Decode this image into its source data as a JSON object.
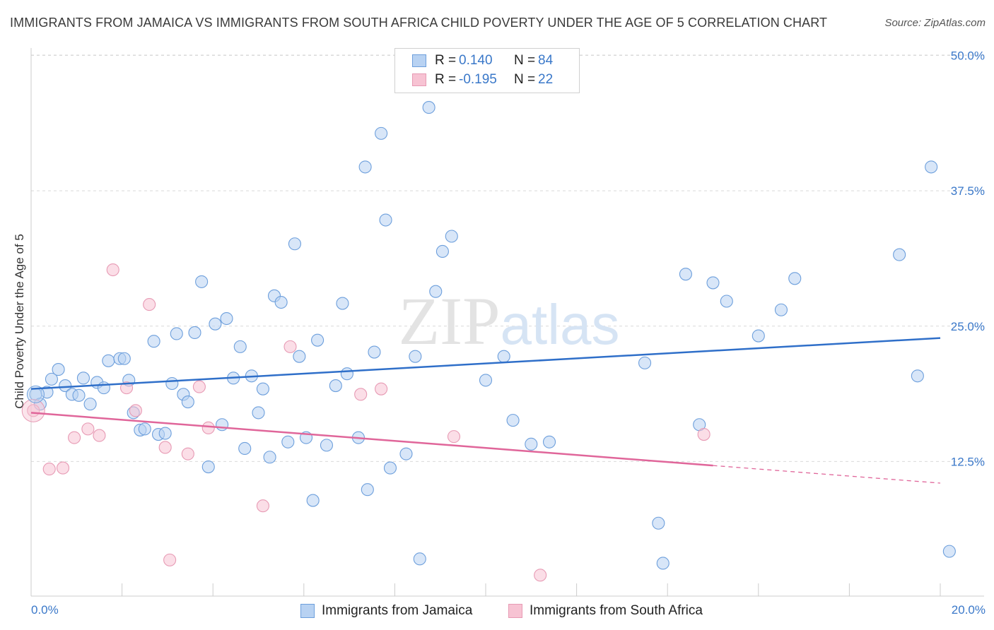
{
  "title": "IMMIGRANTS FROM JAMAICA VS IMMIGRANTS FROM SOUTH AFRICA CHILD POVERTY UNDER THE AGE OF 5 CORRELATION CHART",
  "source": "Source: ZipAtlas.com",
  "colors": {
    "blue": "#4a86d0",
    "blue_fill": "#b8d2f2",
    "pink": "#e0729a",
    "pink_fill": "#f7c3d3",
    "tick_label": "#3a78c9",
    "grid": "#d9d9d9"
  },
  "legend": {
    "series1": {
      "r_label": "R =",
      "r_value": "0.140",
      "n_label": "N =",
      "n_value": "84"
    },
    "series2": {
      "r_label": "R =",
      "r_value": "-0.195",
      "n_label": "N =",
      "n_value": "22"
    }
  },
  "chart_data": {
    "type": "scatter",
    "xlabel": "",
    "ylabel": "Child Poverty Under the Age of 5",
    "xlim": [
      0,
      20
    ],
    "ylim": [
      0,
      52
    ],
    "x_tick_labels": [
      "0.0%",
      "20.0%"
    ],
    "y_ticks": [
      {
        "value": 12.5,
        "label": "12.5%"
      },
      {
        "value": 25.0,
        "label": "25.0%"
      },
      {
        "value": 37.5,
        "label": "37.5%"
      },
      {
        "value": 50.0,
        "label": "50.0%"
      }
    ],
    "grid": "horizontal dashed",
    "watermark": "ZIPatlas",
    "series": [
      {
        "name": "Immigrants from Jamaica",
        "color": "#4a86d0",
        "trend": {
          "x": [
            0,
            20
          ],
          "y": [
            19.2,
            23.9
          ],
          "dashed_from_x": null
        },
        "points": [
          [
            0.1,
            18.7
          ],
          [
            0.2,
            17.8
          ],
          [
            0.35,
            18.9
          ],
          [
            0.45,
            20.1
          ],
          [
            0.6,
            21.0
          ],
          [
            0.75,
            19.5
          ],
          [
            0.9,
            18.7
          ],
          [
            1.05,
            18.6
          ],
          [
            1.15,
            20.2
          ],
          [
            1.3,
            17.8
          ],
          [
            1.45,
            19.8
          ],
          [
            1.6,
            19.3
          ],
          [
            1.7,
            21.8
          ],
          [
            1.95,
            22.0
          ],
          [
            2.05,
            22.0
          ],
          [
            2.15,
            20.0
          ],
          [
            2.25,
            17.0
          ],
          [
            2.4,
            15.4
          ],
          [
            2.5,
            15.5
          ],
          [
            2.7,
            23.6
          ],
          [
            2.8,
            15.0
          ],
          [
            2.95,
            15.1
          ],
          [
            3.1,
            19.7
          ],
          [
            3.2,
            24.3
          ],
          [
            3.35,
            18.7
          ],
          [
            3.45,
            18.0
          ],
          [
            3.6,
            24.4
          ],
          [
            3.75,
            29.1
          ],
          [
            3.9,
            12.0
          ],
          [
            4.05,
            25.2
          ],
          [
            4.2,
            15.9
          ],
          [
            4.3,
            25.7
          ],
          [
            4.45,
            20.2
          ],
          [
            4.6,
            23.1
          ],
          [
            4.7,
            13.7
          ],
          [
            4.85,
            20.4
          ],
          [
            5.0,
            17.0
          ],
          [
            5.1,
            19.2
          ],
          [
            5.25,
            12.9
          ],
          [
            5.35,
            27.8
          ],
          [
            5.5,
            27.2
          ],
          [
            5.65,
            14.3
          ],
          [
            5.8,
            32.6
          ],
          [
            5.9,
            22.2
          ],
          [
            6.05,
            14.7
          ],
          [
            6.2,
            8.9
          ],
          [
            6.3,
            23.7
          ],
          [
            6.5,
            14.0
          ],
          [
            6.7,
            19.5
          ],
          [
            6.85,
            27.1
          ],
          [
            6.95,
            20.6
          ],
          [
            7.2,
            14.7
          ],
          [
            7.4,
            9.9
          ],
          [
            7.35,
            39.7
          ],
          [
            7.55,
            22.6
          ],
          [
            7.7,
            42.8
          ],
          [
            7.8,
            34.8
          ],
          [
            7.9,
            11.9
          ],
          [
            8.25,
            13.2
          ],
          [
            8.45,
            22.2
          ],
          [
            8.55,
            3.5
          ],
          [
            8.75,
            45.2
          ],
          [
            8.9,
            28.2
          ],
          [
            9.05,
            31.9
          ],
          [
            9.25,
            33.3
          ],
          [
            10.0,
            20.0
          ],
          [
            10.4,
            22.2
          ],
          [
            10.6,
            16.3
          ],
          [
            11.0,
            14.1
          ],
          [
            11.4,
            14.3
          ],
          [
            13.5,
            21.6
          ],
          [
            13.8,
            6.8
          ],
          [
            13.9,
            3.1
          ],
          [
            14.4,
            29.8
          ],
          [
            14.7,
            15.9
          ],
          [
            15.0,
            29.0
          ],
          [
            15.3,
            27.3
          ],
          [
            16.0,
            24.1
          ],
          [
            16.5,
            26.5
          ],
          [
            16.8,
            29.4
          ],
          [
            19.1,
            31.6
          ],
          [
            19.5,
            20.4
          ],
          [
            19.8,
            39.7
          ],
          [
            20.2,
            4.2
          ]
        ]
      },
      {
        "name": "Immigrants from South Africa",
        "color": "#e0729a",
        "trend": {
          "x": [
            0,
            20
          ],
          "y": [
            17.0,
            10.5
          ],
          "dashed_from_x": 15.0
        },
        "points": [
          [
            0.05,
            17.2
          ],
          [
            0.4,
            11.8
          ],
          [
            0.7,
            11.9
          ],
          [
            0.95,
            14.7
          ],
          [
            1.25,
            15.5
          ],
          [
            1.5,
            14.9
          ],
          [
            1.8,
            30.2
          ],
          [
            2.1,
            19.3
          ],
          [
            2.3,
            17.2
          ],
          [
            2.6,
            27.0
          ],
          [
            2.95,
            13.8
          ],
          [
            3.45,
            13.2
          ],
          [
            3.7,
            19.4
          ],
          [
            3.9,
            15.6
          ],
          [
            5.1,
            8.4
          ],
          [
            3.05,
            3.4
          ],
          [
            5.7,
            23.1
          ],
          [
            7.25,
            18.7
          ],
          [
            7.7,
            19.2
          ],
          [
            9.3,
            14.8
          ],
          [
            11.2,
            2.0
          ],
          [
            14.8,
            15.0
          ]
        ]
      }
    ]
  }
}
